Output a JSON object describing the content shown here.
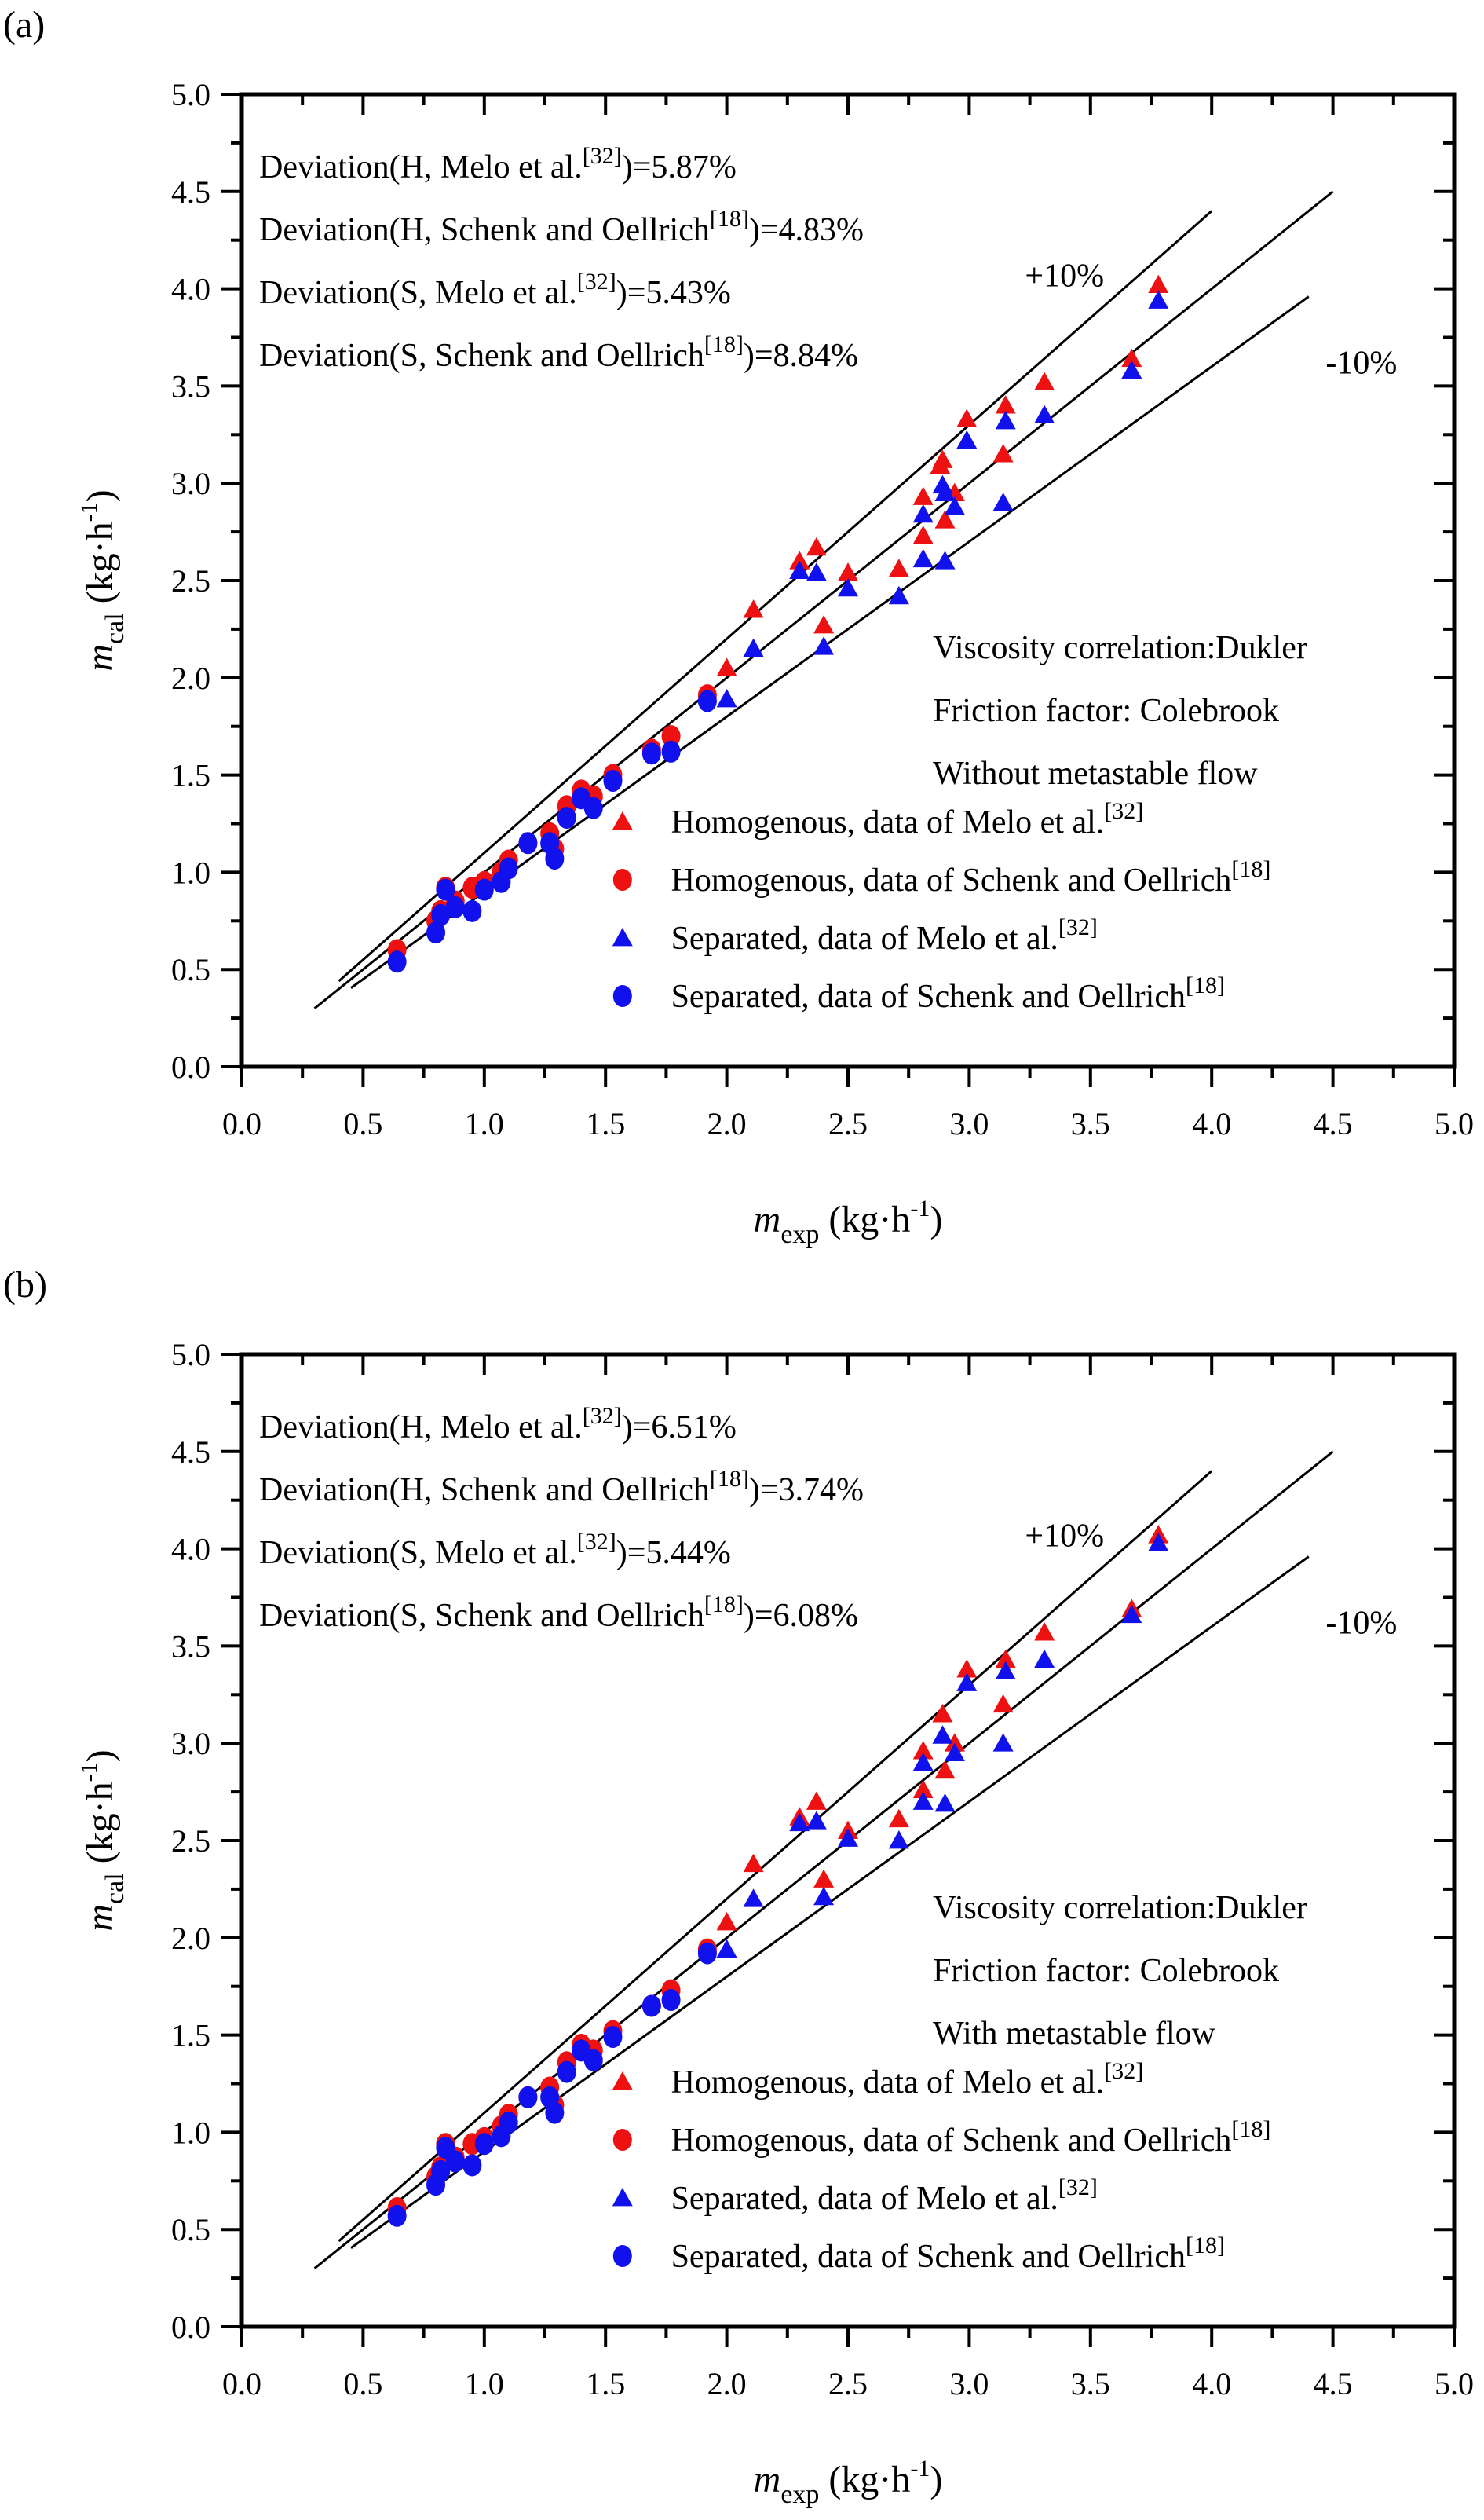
{
  "colors": {
    "red": "#ee1111",
    "blue": "#1111ee",
    "line": "#000000"
  },
  "chart_data": [
    {
      "panel": "(a)",
      "type": "scatter",
      "title": "",
      "xlabel": "m_exp (kg·h^-1)",
      "ylabel": "m_cal (kg·h^-1)",
      "xlim": [
        0,
        5
      ],
      "ylim": [
        0,
        5
      ],
      "xticks": [
        "0.0",
        "0.5",
        "1.0",
        "1.5",
        "2.0",
        "2.5",
        "3.0",
        "3.5",
        "4.0",
        "4.5",
        "5.0"
      ],
      "yticks": [
        "0.0",
        "0.5",
        "1.0",
        "1.5",
        "2.0",
        "2.5",
        "3.0",
        "3.5",
        "4.0",
        "4.5",
        "5.0"
      ],
      "grid": false,
      "legend_position": "lower right",
      "annotations": {
        "deviations": [
          {
            "text": "Deviation(H, Melo et al.",
            "ref": "[32]",
            "value": ")=5.87%"
          },
          {
            "text": "Deviation(H, Schenk and Oellrich",
            "ref": "[18]",
            "value": ")=4.83%"
          },
          {
            "text": "Deviation(S, Melo et al.",
            "ref": "[32]",
            "value": ")=5.43%"
          },
          {
            "text": "Deviation(S, Schenk and Oellrich",
            "ref": "[18]",
            "value": ")=8.84%"
          }
        ],
        "plus10": "+10%",
        "minus10": "-10%",
        "conditions": [
          "Viscosity correlation:Dukler",
          "Friction factor: Colebrook",
          "Without metastable flow"
        ]
      },
      "reference_lines": [
        {
          "name": "+10%",
          "x": [
            0.4,
            4.0
          ],
          "y": [
            0.44,
            4.4
          ]
        },
        {
          "name": "y=x",
          "x": [
            0.3,
            4.5
          ],
          "y": [
            0.3,
            4.5
          ]
        },
        {
          "name": "-10%",
          "x": [
            0.45,
            4.4
          ],
          "y": [
            0.405,
            3.96
          ]
        }
      ],
      "series": [
        {
          "name": "Homogenous, data of Melo et al.",
          "ref": "[32]",
          "marker": "triangle",
          "color": "#ee1111",
          "x": [
            3.78,
            3.67,
            3.31,
            3.15,
            3.14,
            2.99,
            2.89,
            2.88,
            2.94,
            2.9,
            2.81,
            2.81,
            2.71,
            2.5,
            2.4,
            2.37,
            2.3,
            2.11,
            2.0
          ],
          "y": [
            4.02,
            3.64,
            3.52,
            3.4,
            3.15,
            3.33,
            3.12,
            3.09,
            2.95,
            2.81,
            2.93,
            2.73,
            2.56,
            2.54,
            2.27,
            2.67,
            2.6,
            2.35,
            2.05
          ]
        },
        {
          "name": "Homogenous, data of Schenk and Oellrich",
          "ref": "[18]",
          "marker": "circle",
          "color": "#ee1111",
          "x": [
            0.64,
            0.8,
            0.82,
            0.84,
            0.88,
            0.95,
            1.0,
            1.07,
            1.1,
            1.18,
            1.27,
            1.29,
            1.34,
            1.4,
            1.45,
            1.53,
            1.69,
            1.77,
            1.92
          ],
          "y": [
            0.6,
            0.75,
            0.8,
            0.92,
            0.85,
            0.92,
            0.95,
            1.0,
            1.06,
            1.15,
            1.2,
            1.12,
            1.34,
            1.42,
            1.39,
            1.5,
            1.63,
            1.7,
            1.91
          ]
        },
        {
          "name": "Separated, data of Melo et al.",
          "ref": "[32]",
          "marker": "triangle",
          "color": "#1111ee",
          "x": [
            3.78,
            3.67,
            3.31,
            3.15,
            3.14,
            2.99,
            2.89,
            2.9,
            2.94,
            2.9,
            2.81,
            2.81,
            2.71,
            2.5,
            2.4,
            2.37,
            2.3,
            2.11,
            2.0
          ],
          "y": [
            3.94,
            3.58,
            3.35,
            3.32,
            2.9,
            3.22,
            2.99,
            2.95,
            2.88,
            2.6,
            2.84,
            2.61,
            2.42,
            2.46,
            2.16,
            2.54,
            2.55,
            2.15,
            1.89
          ]
        },
        {
          "name": "Separated, data of Schenk and Oellrich",
          "ref": "[18]",
          "marker": "circle",
          "color": "#1111ee",
          "x": [
            0.64,
            0.8,
            0.82,
            0.84,
            0.88,
            0.95,
            1.0,
            1.07,
            1.1,
            1.18,
            1.27,
            1.29,
            1.34,
            1.4,
            1.45,
            1.53,
            1.69,
            1.77,
            1.92
          ],
          "y": [
            0.54,
            0.69,
            0.78,
            0.91,
            0.82,
            0.8,
            0.91,
            0.95,
            1.02,
            1.15,
            1.15,
            1.07,
            1.28,
            1.38,
            1.33,
            1.47,
            1.61,
            1.62,
            1.88
          ]
        }
      ]
    },
    {
      "panel": "(b)",
      "type": "scatter",
      "title": "",
      "xlabel": "m_exp (kg·h^-1)",
      "ylabel": "m_cal (kg·h^-1)",
      "xlim": [
        0,
        5
      ],
      "ylim": [
        0,
        5
      ],
      "xticks": [
        "0.0",
        "0.5",
        "1.0",
        "1.5",
        "2.0",
        "2.5",
        "3.0",
        "3.5",
        "4.0",
        "4.5",
        "5.0"
      ],
      "yticks": [
        "0.0",
        "0.5",
        "1.0",
        "1.5",
        "2.0",
        "2.5",
        "3.0",
        "3.5",
        "4.0",
        "4.5",
        "5.0"
      ],
      "grid": false,
      "legend_position": "lower right",
      "annotations": {
        "deviations": [
          {
            "text": "Deviation(H, Melo et al.",
            "ref": "[32]",
            "value": ")=6.51%"
          },
          {
            "text": "Deviation(H, Schenk and Oellrich",
            "ref": "[18]",
            "value": ")=3.74%"
          },
          {
            "text": "Deviation(S, Melo et al.",
            "ref": "[32]",
            "value": ")=5.44%"
          },
          {
            "text": "Deviation(S, Schenk and Oellrich",
            "ref": "[18]",
            "value": ")=6.08%"
          }
        ],
        "plus10": "+10%",
        "minus10": "-10%",
        "conditions": [
          "Viscosity correlation:Dukler",
          "Friction factor: Colebrook",
          "With metastable flow"
        ]
      },
      "reference_lines": [
        {
          "name": "+10%",
          "x": [
            0.4,
            4.0
          ],
          "y": [
            0.44,
            4.4
          ]
        },
        {
          "name": "y=x",
          "x": [
            0.3,
            4.5
          ],
          "y": [
            0.3,
            4.5
          ]
        },
        {
          "name": "-10%",
          "x": [
            0.45,
            4.4
          ],
          "y": [
            0.405,
            3.96
          ]
        }
      ],
      "series": [
        {
          "name": "Homogenous, data of Melo et al.",
          "ref": "[32]",
          "marker": "triangle",
          "color": "#ee1111",
          "x": [
            3.78,
            3.67,
            3.31,
            3.15,
            3.14,
            2.99,
            2.89,
            2.94,
            2.9,
            2.81,
            2.81,
            2.71,
            2.5,
            2.4,
            2.37,
            2.3,
            2.11,
            2.0
          ],
          "y": [
            4.07,
            3.69,
            3.57,
            3.43,
            3.2,
            3.38,
            3.15,
            3.0,
            2.86,
            2.96,
            2.76,
            2.61,
            2.55,
            2.3,
            2.7,
            2.62,
            2.38,
            2.08
          ]
        },
        {
          "name": "Homogenous, data of Schenk and Oellrich",
          "ref": "[18]",
          "marker": "circle",
          "color": "#ee1111",
          "x": [
            0.64,
            0.8,
            0.82,
            0.84,
            0.88,
            0.95,
            1.0,
            1.07,
            1.1,
            1.18,
            1.27,
            1.29,
            1.34,
            1.4,
            1.45,
            1.53,
            1.69,
            1.77,
            1.92
          ],
          "y": [
            0.61,
            0.77,
            0.82,
            0.94,
            0.87,
            0.94,
            0.97,
            1.03,
            1.09,
            1.18,
            1.23,
            1.14,
            1.36,
            1.45,
            1.42,
            1.52,
            1.65,
            1.73,
            1.94
          ]
        },
        {
          "name": "Separated, data of Melo et al.",
          "ref": "[32]",
          "marker": "triangle",
          "color": "#1111ee",
          "x": [
            3.78,
            3.67,
            3.31,
            3.15,
            3.14,
            2.99,
            2.89,
            2.94,
            2.9,
            2.81,
            2.81,
            2.71,
            2.5,
            2.4,
            2.37,
            2.3,
            2.11,
            2.0
          ],
          "y": [
            4.03,
            3.66,
            3.43,
            3.37,
            3.0,
            3.31,
            3.04,
            2.95,
            2.69,
            2.9,
            2.7,
            2.5,
            2.51,
            2.21,
            2.6,
            2.59,
            2.2,
            1.94
          ]
        },
        {
          "name": "Separated, data of Schenk and Oellrich",
          "ref": "[18]",
          "marker": "circle",
          "color": "#1111ee",
          "x": [
            0.64,
            0.8,
            0.82,
            0.84,
            0.88,
            0.95,
            1.0,
            1.07,
            1.1,
            1.18,
            1.27,
            1.29,
            1.34,
            1.4,
            1.45,
            1.53,
            1.69,
            1.77,
            1.92
          ],
          "y": [
            0.57,
            0.73,
            0.8,
            0.92,
            0.85,
            0.83,
            0.94,
            0.98,
            1.05,
            1.18,
            1.18,
            1.1,
            1.31,
            1.42,
            1.37,
            1.49,
            1.65,
            1.68,
            1.92
          ]
        }
      ]
    }
  ]
}
